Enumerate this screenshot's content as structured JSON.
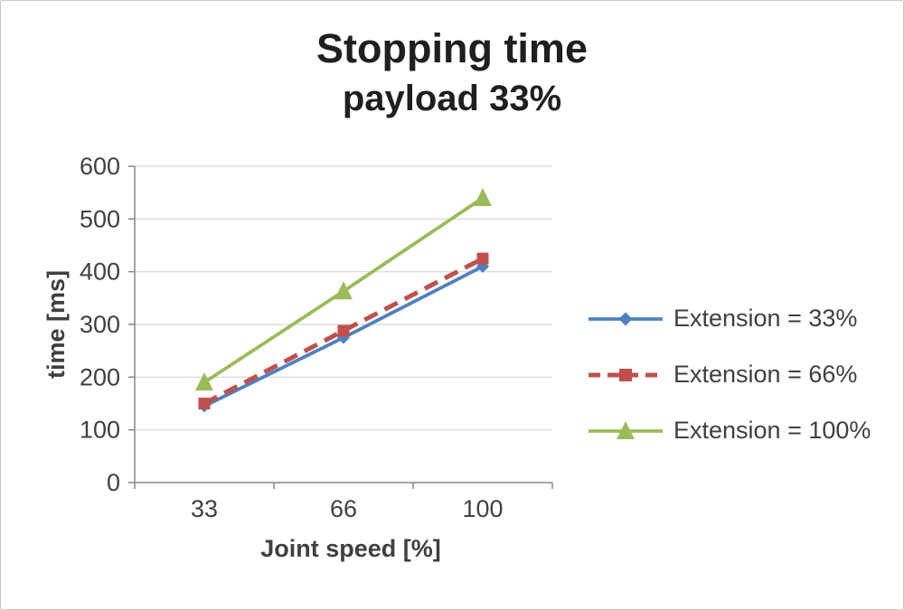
{
  "chart_data": {
    "type": "line",
    "title": "Stopping time",
    "subtitle": "payload 33%",
    "xlabel": "Joint speed [%]",
    "ylabel": "time [ms]",
    "categories": [
      "33",
      "66",
      "100"
    ],
    "y_ticks": [
      0,
      100,
      200,
      300,
      400,
      500,
      600
    ],
    "ylim": [
      0,
      600
    ],
    "grid": true,
    "legend_position": "right",
    "series": [
      {
        "name": "Extension = 33%",
        "values": [
          145,
          275,
          410
        ],
        "color": "#4f81bd",
        "marker": "diamond",
        "dash": "solid"
      },
      {
        "name": "Extension = 66%",
        "values": [
          150,
          288,
          425
        ],
        "color": "#c0504d",
        "marker": "square",
        "dash": "dashed"
      },
      {
        "name": "Extension = 100%",
        "values": [
          190,
          363,
          540
        ],
        "color": "#9bbb59",
        "marker": "triangle",
        "dash": "solid"
      }
    ]
  },
  "colors": {
    "grid": "#d6d6d6",
    "axis": "#868686",
    "text": "#404040",
    "title": "#1f1f1f",
    "frame_border": "#c9c7c5"
  }
}
